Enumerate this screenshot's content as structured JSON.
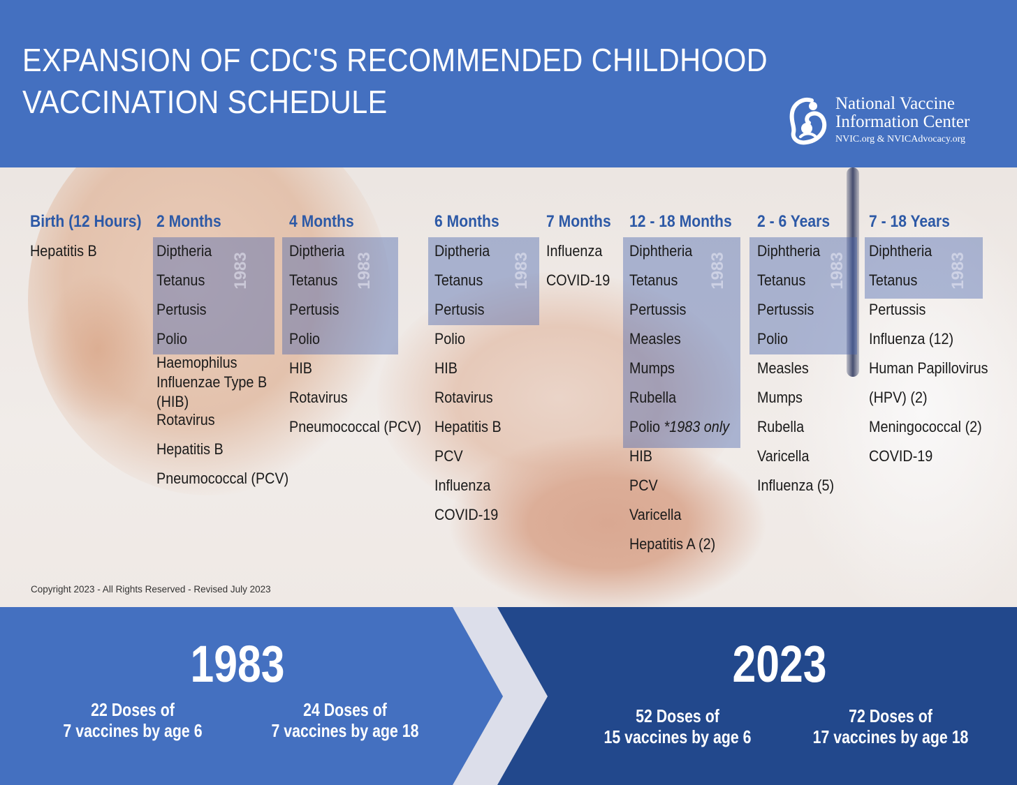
{
  "header": {
    "title_line1": "EXPANSION OF CDC'S RECOMMENDED CHILDHOOD",
    "title_line2": "VACCINATION SCHEDULE",
    "logo": {
      "line1": "National Vaccine",
      "line2": "Information Center",
      "sub": "NVIC.org & NVICAdvocacy.org"
    },
    "color": "#4470c0"
  },
  "schedule": {
    "marker_1983": "1983",
    "columns": [
      {
        "heading": "Birth (12 Hours)",
        "items": [
          "Hepatitis B"
        ]
      },
      {
        "heading": "2 Months",
        "items": [
          "Diptheria",
          "Tetanus",
          "Pertusis",
          "Polio",
          "Haemophilus Influenzae Type B (HIB)",
          "Rotavirus",
          "Hepatitis B",
          "Pneumococcal (PCV)"
        ]
      },
      {
        "heading": "4 Months",
        "items": [
          "Diptheria",
          "Tetanus",
          "Pertusis",
          "Polio",
          "HIB",
          "Rotavirus",
          "Pneumococcal (PCV)"
        ]
      },
      {
        "heading": "6 Months",
        "items": [
          "Diptheria",
          "Tetanus",
          "Pertusis",
          "Polio",
          "HIB",
          "Rotavirus",
          "Hepatitis B",
          "PCV",
          "Influenza",
          "COVID-19"
        ]
      },
      {
        "heading": "7 Months",
        "items": [
          "Influenza",
          "COVID-19"
        ]
      },
      {
        "heading": "12 - 18 Months",
        "items": [
          "Diphtheria",
          "Tetanus",
          "Pertussis",
          "Measles",
          "Mumps",
          "Rubella",
          "Polio ",
          "HIB",
          "PCV",
          "Varicella",
          "Hepatitis A (2)"
        ],
        "polio_note": "*1983 only"
      },
      {
        "heading": "2 - 6 Years",
        "items": [
          "Diphtheria",
          "Tetanus",
          "Pertussis",
          "Polio",
          "Measles",
          "Mumps",
          "Rubella",
          "Varicella",
          "Influenza (5)"
        ]
      },
      {
        "heading": "7 - 18 Years",
        "items": [
          "Diphtheria",
          "Tetanus",
          "Pertussis",
          "Influenza (12)",
          "Human Papillovirus",
          "(HPV) (2)",
          "Meningococcal (2)",
          "COVID-19"
        ]
      }
    ],
    "colors": {
      "heading": "#2d59a6",
      "box_1983": "rgba(72,100,175,0.42)"
    }
  },
  "copyright": "Copyright 2023 - All Rights Reserved - Revised July 2023",
  "footer": {
    "left": {
      "year": "1983",
      "stats": [
        {
          "line1": "22 Doses of",
          "line2": "7 vaccines by age 6"
        },
        {
          "line1": "24 Doses of",
          "line2": "7 vaccines by age 18"
        }
      ]
    },
    "right": {
      "year": "2023",
      "stats": [
        {
          "line1": "52 Doses of",
          "line2": "15 vaccines by age 6"
        },
        {
          "line1": "72 Doses of",
          "line2": "17 vaccines by age 18"
        }
      ]
    },
    "colors": {
      "left": "#4470c0",
      "right": "#22488c",
      "chevron": "#dcdeea"
    }
  }
}
